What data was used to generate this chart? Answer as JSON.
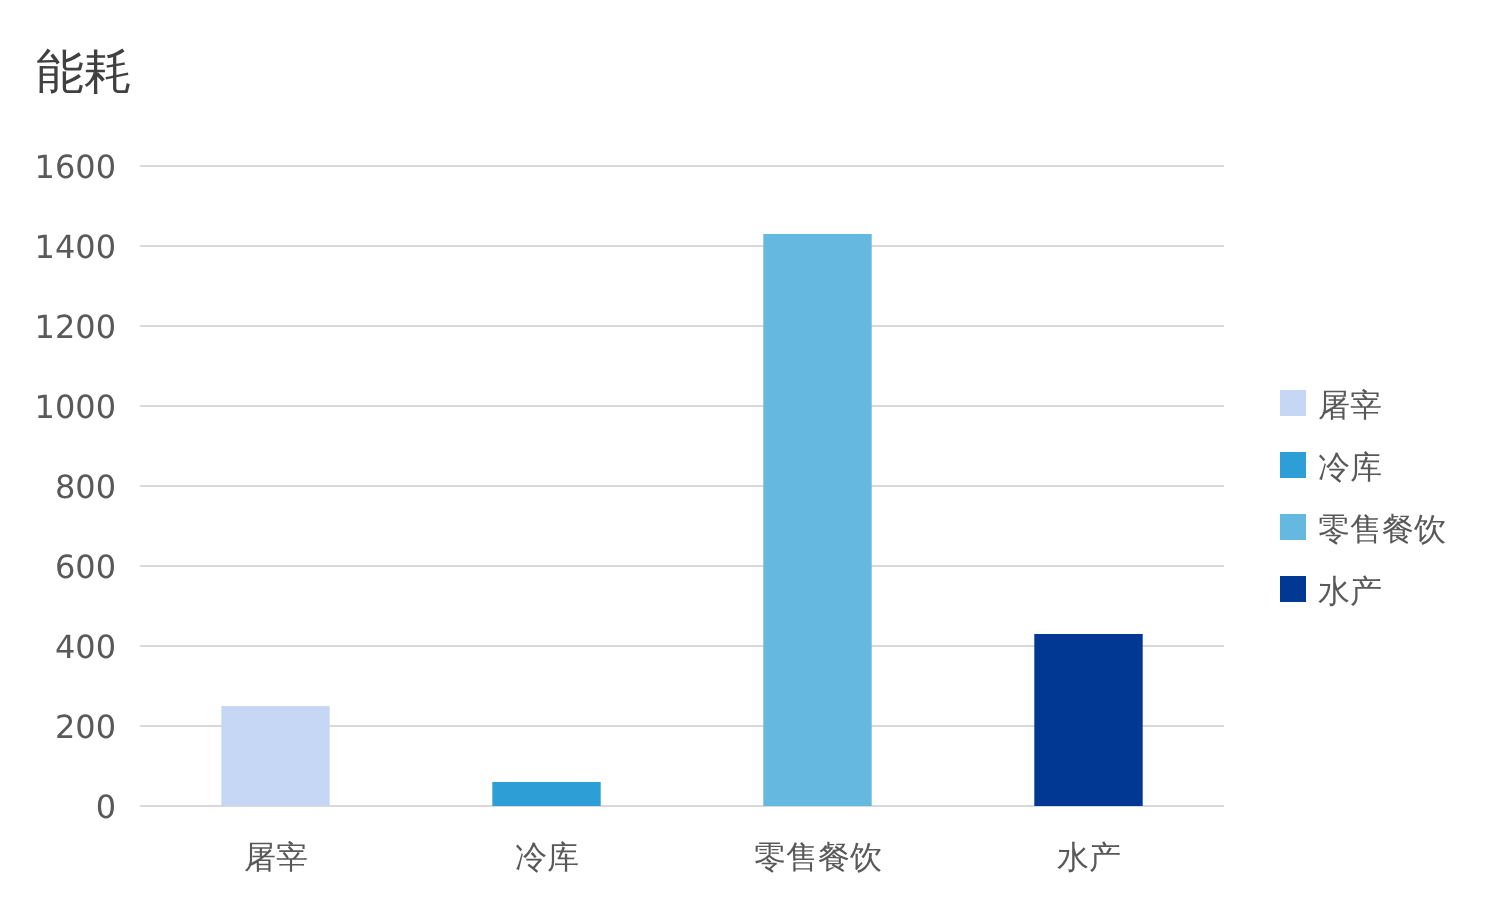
{
  "chart_data": {
    "type": "bar",
    "title": "能耗",
    "categories": [
      "屠宰",
      "冷库",
      "零售餐饮",
      "水产"
    ],
    "series": [
      {
        "name": "屠宰",
        "color": "#c5d7f5",
        "values": [
          250,
          null,
          null,
          null
        ]
      },
      {
        "name": "冷库",
        "color": "#2e9fd6",
        "values": [
          null,
          60,
          null,
          null
        ]
      },
      {
        "name": "零售餐饮",
        "color": "#65b8df",
        "values": [
          null,
          null,
          1430,
          null
        ]
      },
      {
        "name": "水产",
        "color": "#013893",
        "values": [
          null,
          null,
          null,
          430
        ]
      }
    ],
    "ylim": [
      0,
      1600
    ],
    "yticks": [
      0,
      200,
      400,
      600,
      800,
      1000,
      1200,
      1400,
      1600
    ],
    "grid": "y",
    "legend": "right"
  }
}
